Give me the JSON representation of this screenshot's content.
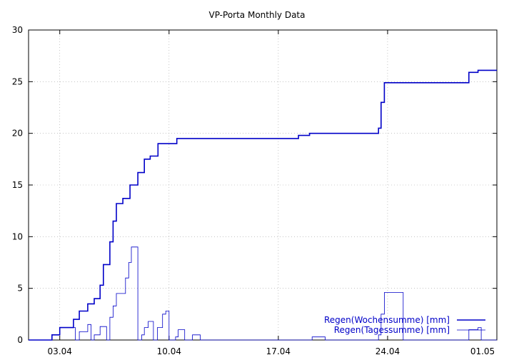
{
  "chart_data": {
    "type": "line",
    "title": "VP-Porta Monthly Data",
    "xlabel": "",
    "ylabel": "",
    "x_range": [
      "2012-04-01",
      "2012-05-01"
    ],
    "ylim": [
      0,
      30
    ],
    "y_ticks": [
      0,
      5,
      10,
      15,
      20,
      25,
      30
    ],
    "x_ticks": [
      {
        "date": "2012-04-03",
        "label": "03.04"
      },
      {
        "date": "2012-04-10",
        "label": "10.04"
      },
      {
        "date": "2012-04-17",
        "label": "17.04"
      },
      {
        "date": "2012-04-24",
        "label": "24.04"
      },
      {
        "date": "2012-05-01",
        "label": "01.05"
      }
    ],
    "grid": true,
    "legend_position": "bottom-right",
    "series": [
      {
        "name": "Regen(Wochensumme) [mm]",
        "color": "#0000c8",
        "step": true,
        "points": [
          [
            "2012-04-01",
            0
          ],
          [
            "2012-04-02",
            0
          ],
          [
            "2012-04-02T12:00",
            0.5
          ],
          [
            "2012-04-03",
            1.2
          ],
          [
            "2012-04-03T21:00",
            2.0
          ],
          [
            "2012-04-04T06:00",
            2.8
          ],
          [
            "2012-04-04T19:00",
            3.5
          ],
          [
            "2012-04-05T05:00",
            4.0
          ],
          [
            "2012-04-05T14:00",
            5.3
          ],
          [
            "2012-04-05T19:00",
            7.3
          ],
          [
            "2012-04-06T05:00",
            9.5
          ],
          [
            "2012-04-06T10:00",
            11.5
          ],
          [
            "2012-04-06T15:00",
            13.2
          ],
          [
            "2012-04-07T01:00",
            13.7
          ],
          [
            "2012-04-07T12:00",
            15.0
          ],
          [
            "2012-04-08",
            16.2
          ],
          [
            "2012-04-08T10:00",
            17.5
          ],
          [
            "2012-04-08T19:00",
            17.8
          ],
          [
            "2012-04-09T07:00",
            19.0
          ],
          [
            "2012-04-10T12:00",
            19.5
          ],
          [
            "2012-04-18T07:00",
            19.8
          ],
          [
            "2012-04-19T00:00",
            20.0
          ],
          [
            "2012-04-23T10:00",
            20.5
          ],
          [
            "2012-04-23T14:00",
            23.0
          ],
          [
            "2012-04-23T19:00",
            24.9
          ],
          [
            "2012-04-29T05:00",
            25.9
          ],
          [
            "2012-04-29T19:00",
            26.1
          ],
          [
            "2012-05-01",
            26.1
          ]
        ]
      },
      {
        "name": "Regen(Tagessumme) [mm]",
        "color": "#0000c8",
        "step": true,
        "points": [
          [
            "2012-04-01",
            0
          ],
          [
            "2012-04-02T12:00",
            0.5
          ],
          [
            "2012-04-03",
            1.2
          ],
          [
            "2012-04-04",
            0
          ],
          [
            "2012-04-04T06:00",
            0.8
          ],
          [
            "2012-04-04T19:00",
            1.5
          ],
          [
            "2012-04-05",
            0
          ],
          [
            "2012-04-05T05:00",
            0.5
          ],
          [
            "2012-04-05T14:00",
            1.3
          ],
          [
            "2012-04-06",
            0
          ],
          [
            "2012-04-06T05:00",
            2.2
          ],
          [
            "2012-04-06T10:00",
            3.3
          ],
          [
            "2012-04-06T15:00",
            4.5
          ],
          [
            "2012-04-07T05:00",
            6.0
          ],
          [
            "2012-04-07T10:00",
            7.5
          ],
          [
            "2012-04-07T14:00",
            9.0
          ],
          [
            "2012-04-08",
            0
          ],
          [
            "2012-04-08T06:00",
            0.5
          ],
          [
            "2012-04-08T10:00",
            1.2
          ],
          [
            "2012-04-08T16:00",
            1.8
          ],
          [
            "2012-04-09",
            0
          ],
          [
            "2012-04-09T06:00",
            1.2
          ],
          [
            "2012-04-09T14:00",
            2.5
          ],
          [
            "2012-04-09T19:00",
            2.8
          ],
          [
            "2012-04-10",
            0
          ],
          [
            "2012-04-10T10:00",
            0.3
          ],
          [
            "2012-04-10T14:00",
            1.0
          ],
          [
            "2012-04-11",
            0
          ],
          [
            "2012-04-11T12:00",
            0.5
          ],
          [
            "2012-04-12",
            0
          ],
          [
            "2012-04-19T04:00",
            0.3
          ],
          [
            "2012-04-20",
            0
          ],
          [
            "2012-04-23T10:00",
            0.5
          ],
          [
            "2012-04-23T14:00",
            2.5
          ],
          [
            "2012-04-23T19:00",
            4.6
          ],
          [
            "2012-04-25",
            0
          ],
          [
            "2012-04-29T05:00",
            1.0
          ],
          [
            "2012-04-29T19:00",
            1.2
          ],
          [
            "2012-04-30",
            0
          ],
          [
            "2012-05-01",
            0
          ]
        ]
      }
    ]
  }
}
